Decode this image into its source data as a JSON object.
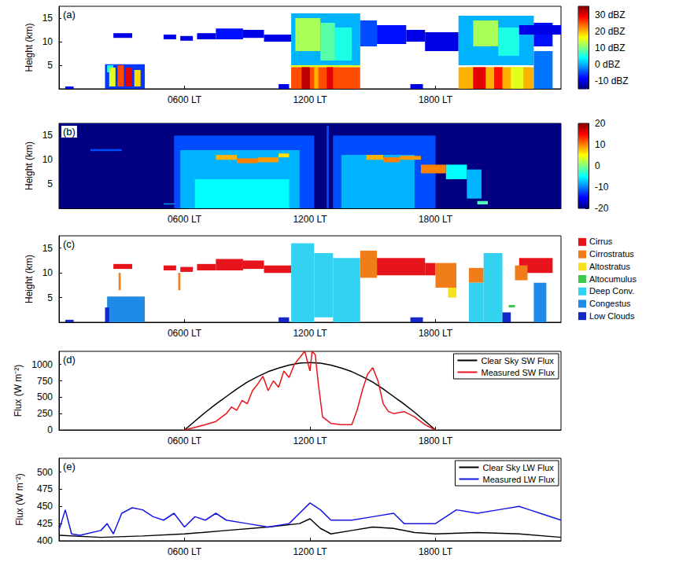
{
  "chart_data": [
    {
      "type": "heatmap",
      "panel": "(a)",
      "y_label": "Height (km)",
      "xlim": [
        0,
        24
      ],
      "xticks": [
        {
          "value": 6,
          "label": "0600 LT"
        },
        {
          "value": 12,
          "label": "1200 LT"
        },
        {
          "value": 18,
          "label": "1800 LT"
        }
      ],
      "ylim": [
        0,
        17.5
      ],
      "yticks": [
        5,
        10,
        15
      ],
      "colorbar": {
        "range": [
          -15,
          35
        ],
        "ticks": [
          {
            "value": -10,
            "label": "-10 dBZ"
          },
          {
            "value": 0,
            "label": "0 dBZ"
          },
          {
            "value": 10,
            "label": "10 dBZ"
          },
          {
            "value": 20,
            "label": "20 dBZ"
          },
          {
            "value": 30,
            "label": "30 dBZ"
          }
        ]
      },
      "cells": [
        [
          0.3,
          0.7,
          0,
          0.5,
          -8
        ],
        [
          2.6,
          3.5,
          10.8,
          11.8,
          -10
        ],
        [
          2.2,
          4.1,
          0,
          5.2,
          -6
        ],
        [
          2.3,
          2.6,
          3.5,
          5,
          5
        ],
        [
          2.4,
          2.7,
          0.5,
          4.5,
          15
        ],
        [
          2.8,
          3.1,
          0.5,
          5,
          25
        ],
        [
          3.2,
          3.5,
          0.5,
          4.5,
          30
        ],
        [
          3.6,
          3.9,
          0.5,
          4,
          18
        ],
        [
          5.0,
          5.6,
          10.5,
          11.5,
          -10
        ],
        [
          5.8,
          6.4,
          10.2,
          11.2,
          -10
        ],
        [
          6.6,
          7.5,
          10.5,
          11.8,
          -10
        ],
        [
          7.5,
          8.8,
          10.5,
          12.8,
          -8
        ],
        [
          8.8,
          9.8,
          10.8,
          12.5,
          -10
        ],
        [
          9.8,
          11.1,
          10,
          11.5,
          -10
        ],
        [
          10.5,
          11,
          0,
          1,
          -10
        ],
        [
          11.1,
          14.4,
          5,
          16,
          0
        ],
        [
          11.3,
          12.5,
          8,
          15,
          12
        ],
        [
          12.5,
          13.2,
          6,
          14,
          8
        ],
        [
          13.2,
          14,
          6,
          13,
          5
        ],
        [
          11.1,
          14.4,
          4.6,
          5,
          15
        ],
        [
          11.1,
          14.4,
          0,
          4.6,
          25
        ],
        [
          11.6,
          12,
          0,
          4.6,
          32
        ],
        [
          12.2,
          12.4,
          0,
          4.6,
          20
        ],
        [
          12.8,
          13.1,
          0,
          4.6,
          30
        ],
        [
          14.4,
          15.2,
          9,
          14.5,
          -5
        ],
        [
          15.2,
          16.6,
          9.5,
          13.5,
          -8
        ],
        [
          16.6,
          17.5,
          10,
          12.5,
          -10
        ],
        [
          16.8,
          17.4,
          0,
          1,
          -10
        ],
        [
          17.5,
          19.1,
          8,
          12,
          -10
        ],
        [
          19.1,
          22.7,
          5,
          15.5,
          0
        ],
        [
          19.8,
          21,
          9,
          14.5,
          12
        ],
        [
          21,
          22,
          7,
          13,
          5
        ],
        [
          19.1,
          22.7,
          0,
          4.6,
          20
        ],
        [
          19.8,
          20.4,
          0,
          4.6,
          30
        ],
        [
          20.8,
          21.2,
          0,
          4.6,
          28
        ],
        [
          21.6,
          22.2,
          0,
          4.6,
          15
        ],
        [
          22.7,
          23.6,
          9,
          14,
          -8
        ],
        [
          22.7,
          23.6,
          0,
          8,
          -3
        ],
        [
          22.0,
          24,
          11.5,
          13.5,
          -10
        ]
      ]
    },
    {
      "type": "heatmap",
      "panel": "(b)",
      "xlim": [
        0,
        24
      ],
      "xticks": [
        {
          "value": 6,
          "label": "0600 LT"
        },
        {
          "value": 12,
          "label": "1200 LT"
        },
        {
          "value": 18,
          "label": "1800 LT"
        }
      ],
      "ylim": [
        0,
        17.5
      ],
      "yticks": [
        5,
        10,
        15
      ],
      "y_label": "Height (km)",
      "colorbar": {
        "range": [
          -20,
          20
        ],
        "ticks": [
          -20,
          -10,
          0,
          10,
          20
        ]
      },
      "cells": [
        [
          0,
          24,
          0,
          17.5,
          -20
        ],
        [
          1.5,
          3,
          11.8,
          12.2,
          -12
        ],
        [
          5,
          5.5,
          0.8,
          1,
          -8
        ],
        [
          5.5,
          12.2,
          0,
          15,
          -12
        ],
        [
          5.8,
          11.5,
          0,
          12,
          -8
        ],
        [
          6.5,
          11,
          0,
          6,
          -5
        ],
        [
          7.5,
          8.5,
          10,
          11,
          8
        ],
        [
          8.5,
          9.5,
          9.3,
          10.3,
          10
        ],
        [
          9.5,
          10.5,
          9.5,
          10.5,
          9
        ],
        [
          10.5,
          11,
          10.5,
          11.3,
          6
        ],
        [
          12.8,
          12.9,
          0,
          17,
          -12
        ],
        [
          13.1,
          18,
          0,
          15,
          -12
        ],
        [
          13.5,
          17,
          0,
          11,
          -8
        ],
        [
          14.7,
          15.5,
          10,
          11,
          8
        ],
        [
          15.5,
          16.3,
          9.5,
          10.5,
          10
        ],
        [
          16.3,
          17.3,
          10,
          10.8,
          9
        ],
        [
          17.3,
          18.5,
          7.2,
          9,
          10
        ],
        [
          18.5,
          19.5,
          6,
          9,
          -5
        ],
        [
          19.5,
          20.2,
          2,
          8,
          -8
        ],
        [
          20,
          20.5,
          0.8,
          1.5,
          -2
        ]
      ]
    },
    {
      "type": "classification",
      "panel": "(c)",
      "y_label": "Height (km)",
      "xlim": [
        0,
        24
      ],
      "xticks": [
        {
          "value": 6,
          "label": "0600 LT"
        },
        {
          "value": 12,
          "label": "1200 LT"
        },
        {
          "value": 18,
          "label": "1800 LT"
        }
      ],
      "ylim": [
        0,
        17.5
      ],
      "yticks": [
        5,
        10,
        15
      ],
      "classes": [
        {
          "name": "Cirrus",
          "color": "#e8141c"
        },
        {
          "name": "Cirrostratus",
          "color": "#f07d1a"
        },
        {
          "name": "Altostratus",
          "color": "#f5e11e"
        },
        {
          "name": "Altocumulus",
          "color": "#3cc84b"
        },
        {
          "name": "Deep Conv.",
          "color": "#33d2f0"
        },
        {
          "name": "Congestus",
          "color": "#1e8ce6"
        },
        {
          "name": "Low Clouds",
          "color": "#1428c8"
        }
      ],
      "cells": [
        [
          2.6,
          3.5,
          10.8,
          11.8,
          "Cirrus"
        ],
        [
          5,
          5.6,
          10.5,
          11.5,
          "Cirrus"
        ],
        [
          5.8,
          6.4,
          10.2,
          11.2,
          "Cirrus"
        ],
        [
          6.6,
          7.5,
          10.5,
          11.8,
          "Cirrus"
        ],
        [
          7.5,
          8.8,
          10.5,
          12.8,
          "Cirrus"
        ],
        [
          8.8,
          9.8,
          10.8,
          12.5,
          "Cirrus"
        ],
        [
          9.8,
          11.1,
          10,
          11.5,
          "Cirrus"
        ],
        [
          15.2,
          17.5,
          9.5,
          13,
          "Cirrus"
        ],
        [
          17.5,
          18,
          9.5,
          12,
          "Cirrus"
        ],
        [
          22,
          23.6,
          10,
          13,
          "Cirrus"
        ],
        [
          2.85,
          2.95,
          6.5,
          10,
          "Cirrostratus"
        ],
        [
          5.7,
          5.8,
          6.5,
          10,
          "Cirrostratus"
        ],
        [
          14.4,
          15.2,
          9,
          14.5,
          "Cirrostratus"
        ],
        [
          18,
          19,
          7,
          12,
          "Cirrostratus"
        ],
        [
          19.6,
          20.3,
          8,
          11,
          "Cirrostratus"
        ],
        [
          21.8,
          22.4,
          8.5,
          11.5,
          "Cirrostratus"
        ],
        [
          18.6,
          19,
          5,
          7,
          "Altostratus"
        ],
        [
          21.5,
          21.8,
          3,
          3.5,
          "Altocumulus"
        ],
        [
          11.1,
          12.2,
          0,
          16,
          "Deep Conv."
        ],
        [
          12.2,
          13.1,
          1,
          14,
          "Deep Conv."
        ],
        [
          13.1,
          14.4,
          0,
          13,
          "Deep Conv."
        ],
        [
          20.3,
          21.2,
          0,
          14,
          "Deep Conv."
        ],
        [
          19.6,
          20.3,
          0,
          8,
          "Deep Conv."
        ],
        [
          2.3,
          4.1,
          0,
          5.2,
          "Congestus"
        ],
        [
          22.7,
          23.3,
          0,
          8,
          "Congestus"
        ],
        [
          0.3,
          0.7,
          0,
          0.5,
          "Low Clouds"
        ],
        [
          2.2,
          2.4,
          0,
          3,
          "Low Clouds"
        ],
        [
          10.5,
          11,
          0,
          1,
          "Low Clouds"
        ],
        [
          16.8,
          17.4,
          0,
          1,
          "Low Clouds"
        ],
        [
          21.2,
          21.6,
          0,
          2,
          "Low Clouds"
        ]
      ]
    },
    {
      "type": "line",
      "panel": "(d)",
      "y_label": "Flux (W m⁻²)",
      "xlim": [
        0,
        24
      ],
      "xticks": [
        {
          "value": 6,
          "label": "0600 LT"
        },
        {
          "value": 12,
          "label": "1200 LT"
        },
        {
          "value": 18,
          "label": "1800 LT"
        }
      ],
      "ylim": [
        0,
        1200
      ],
      "yticks": [
        0,
        250,
        500,
        750,
        1000
      ],
      "legend": "upper right",
      "series": [
        {
          "name": "Clear Sky SW Flux",
          "color": "#000000",
          "x": [
            6,
            6.5,
            7,
            7.5,
            8,
            8.5,
            9,
            9.5,
            10,
            10.5,
            11,
            11.5,
            12,
            12.5,
            13,
            13.5,
            14,
            14.5,
            15,
            15.5,
            16,
            16.5,
            17,
            17.5,
            18
          ],
          "values": [
            0,
            135,
            270,
            395,
            510,
            625,
            730,
            815,
            890,
            945,
            990,
            1020,
            1030,
            1020,
            990,
            945,
            890,
            815,
            730,
            625,
            510,
            395,
            270,
            135,
            0
          ]
        },
        {
          "name": "Measured SW Flux",
          "color": "#e8141c",
          "x": [
            6,
            6.5,
            7,
            7.5,
            8,
            8.25,
            8.5,
            8.75,
            9,
            9.25,
            9.5,
            9.75,
            10,
            10.25,
            10.5,
            10.75,
            11,
            11.25,
            11.5,
            11.75,
            12,
            12.1,
            12.25,
            12.4,
            12.6,
            13,
            13.5,
            14,
            14.25,
            14.5,
            14.75,
            15,
            15.25,
            15.5,
            15.75,
            16,
            16.5,
            17,
            17.5,
            18
          ],
          "values": [
            0,
            40,
            80,
            130,
            250,
            350,
            300,
            450,
            400,
            600,
            700,
            820,
            600,
            750,
            650,
            900,
            800,
            1000,
            1100,
            1200,
            900,
            1200,
            1150,
            700,
            200,
            100,
            80,
            80,
            300,
            600,
            850,
            950,
            750,
            400,
            280,
            250,
            280,
            200,
            80,
            0
          ]
        }
      ]
    },
    {
      "type": "line",
      "panel": "(e)",
      "y_label": "Flux (W m⁻²)",
      "xlim": [
        0,
        24
      ],
      "xticks": [
        {
          "value": 6,
          "label": "0600 LT"
        },
        {
          "value": 12,
          "label": "1200 LT"
        },
        {
          "value": 18,
          "label": "1800 LT"
        }
      ],
      "ylim": [
        400,
        520
      ],
      "yticks": [
        400,
        425,
        450,
        475,
        500
      ],
      "legend": "upper right",
      "series": [
        {
          "name": "Clear Sky LW Flux",
          "color": "#000000",
          "x": [
            0,
            2,
            4,
            6,
            8,
            10,
            11.5,
            12,
            12.5,
            13,
            14,
            15,
            16,
            17,
            18,
            20,
            22,
            24
          ],
          "values": [
            408,
            405,
            407,
            410,
            415,
            420,
            425,
            432,
            418,
            410,
            415,
            420,
            418,
            412,
            410,
            412,
            410,
            405
          ]
        },
        {
          "name": "Measured LW Flux",
          "color": "#1414e6",
          "x": [
            0,
            0.3,
            0.6,
            1,
            2,
            2.3,
            2.6,
            3,
            3.5,
            4,
            4.5,
            5,
            5.5,
            6,
            6.5,
            7,
            7.5,
            8,
            9,
            10,
            11,
            11.5,
            12,
            12.5,
            13,
            14,
            15,
            16,
            16.5,
            17,
            18,
            19,
            20,
            21,
            22,
            22.5,
            23,
            24
          ],
          "values": [
            415,
            445,
            410,
            408,
            415,
            425,
            410,
            440,
            448,
            445,
            435,
            430,
            440,
            420,
            435,
            430,
            440,
            430,
            425,
            420,
            425,
            440,
            455,
            445,
            430,
            430,
            435,
            440,
            425,
            425,
            425,
            445,
            440,
            445,
            450,
            445,
            440,
            430
          ]
        }
      ]
    }
  ]
}
